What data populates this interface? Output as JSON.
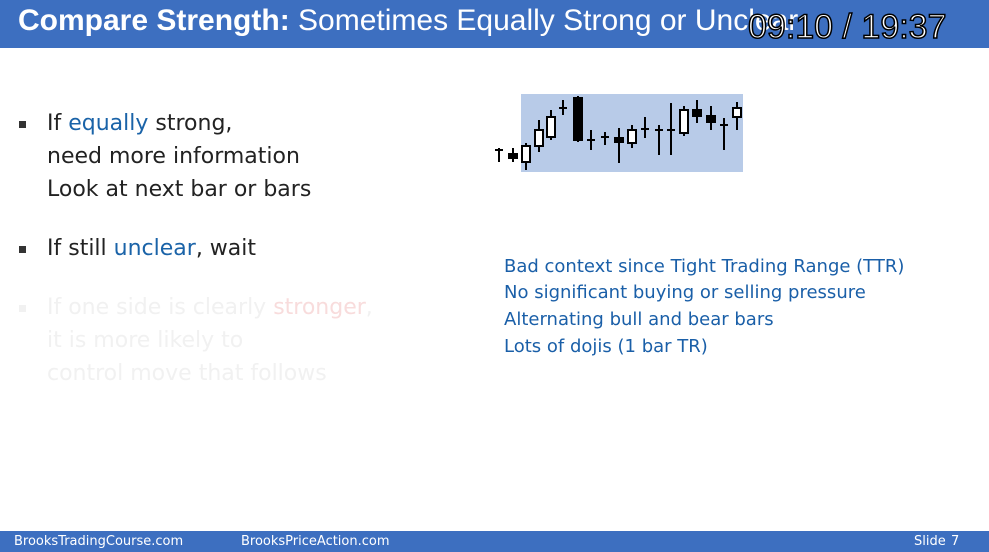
{
  "header": {
    "title": "Compare Strength:",
    "subtitle": "Sometimes Equally Strong or Unclear",
    "timestamp": "09:10 / 19:37"
  },
  "bullets": [
    {
      "lines": [
        [
          "If ",
          "equally",
          " strong,"
        ],
        [
          "need more information"
        ],
        [
          "Look at next bar or bars"
        ]
      ]
    },
    {
      "lines": [
        [
          "If still ",
          "unclear",
          ", wait"
        ]
      ]
    },
    {
      "lines": [
        [
          "If one side is clearly ",
          "stronger",
          ","
        ],
        [
          "it is more likely to"
        ],
        [
          "control move that follows"
        ]
      ]
    }
  ],
  "notes": [
    "Bad context since Tight Trading Range (TTR)",
    "No significant buying or selling pressure",
    "Alternating bull and bear bars",
    "Lots of dojis (1 bar TR)"
  ],
  "footer": {
    "left": "BrooksTradingCourse.com",
    "center": "BrooksPriceAction.com",
    "slide_label": "Slide",
    "slide_number": "7"
  }
}
